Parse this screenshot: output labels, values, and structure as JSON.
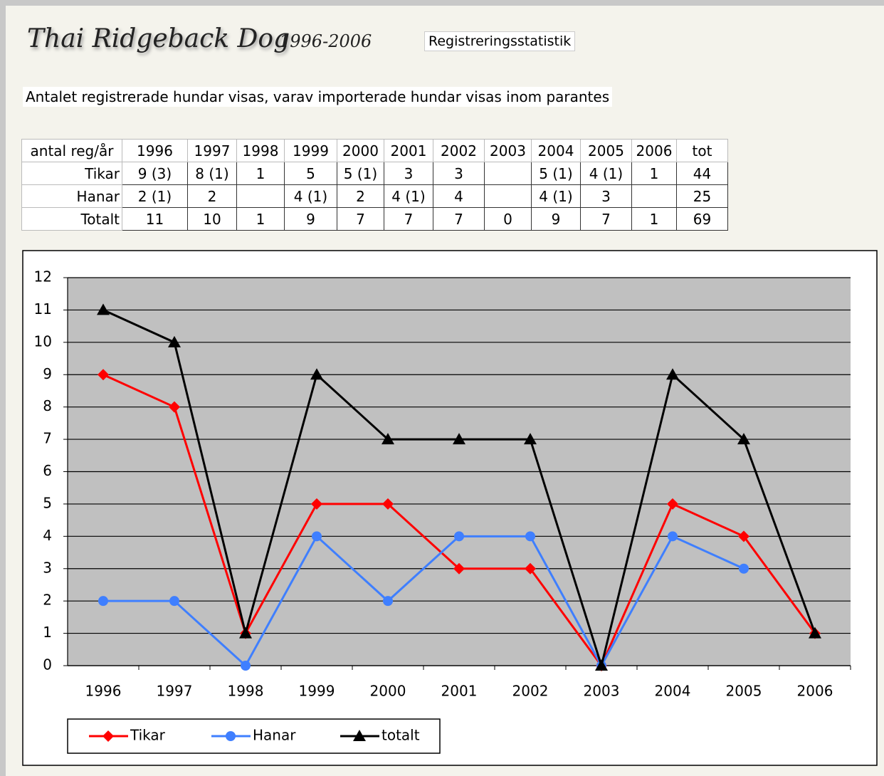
{
  "header": {
    "title": "Thai Ridgeback Dog",
    "years": "1996-2006",
    "tag": "Registreringsstatistik",
    "description": "Antalet registrerade hundar visas, varav importerade hundar visas inom parantes"
  },
  "table": {
    "rows": [
      [
        "antal reg/år",
        "1996",
        "1997",
        "1998",
        "1999",
        "2000",
        "2001",
        "2002",
        "2003",
        "2004",
        "2005",
        "2006",
        "tot"
      ],
      [
        "Tikar",
        "9 (3)",
        "8 (1)",
        "1",
        "5",
        "5 (1)",
        "3",
        "3",
        null,
        "5 (1)",
        "4 (1)",
        "1",
        "44"
      ],
      [
        "Hanar",
        "2 (1)",
        "2",
        null,
        "4 (1)",
        "2",
        "4 (1)",
        "4",
        null,
        "4 (1)",
        "3",
        null,
        "25"
      ],
      [
        "Totalt",
        "11",
        "10",
        "1",
        "9",
        "7",
        "7",
        "7",
        "0",
        "9",
        "7",
        "1",
        "69"
      ]
    ]
  },
  "chart_data": {
    "type": "line",
    "categories": [
      "1996",
      "1997",
      "1998",
      "1999",
      "2000",
      "2001",
      "2002",
      "2003",
      "2004",
      "2005",
      "2006"
    ],
    "series": [
      {
        "name": "Tikar",
        "color": "#ff0000",
        "marker": "diamond",
        "values": [
          9,
          8,
          1,
          5,
          5,
          3,
          3,
          0,
          5,
          4,
          1
        ]
      },
      {
        "name": "Hanar",
        "color": "#3f7fff",
        "marker": "circle",
        "values": [
          2,
          2,
          0,
          4,
          2,
          4,
          4,
          0,
          4,
          3,
          null
        ]
      },
      {
        "name": "totalt",
        "color": "#000000",
        "marker": "triangle",
        "values": [
          11,
          10,
          1,
          9,
          7,
          7,
          7,
          0,
          9,
          7,
          1
        ]
      }
    ],
    "ylim": [
      0,
      12
    ],
    "yticks": [
      0,
      1,
      2,
      3,
      4,
      5,
      6,
      7,
      8,
      9,
      10,
      11,
      12
    ],
    "grid": true,
    "legend": "bottom-left"
  }
}
